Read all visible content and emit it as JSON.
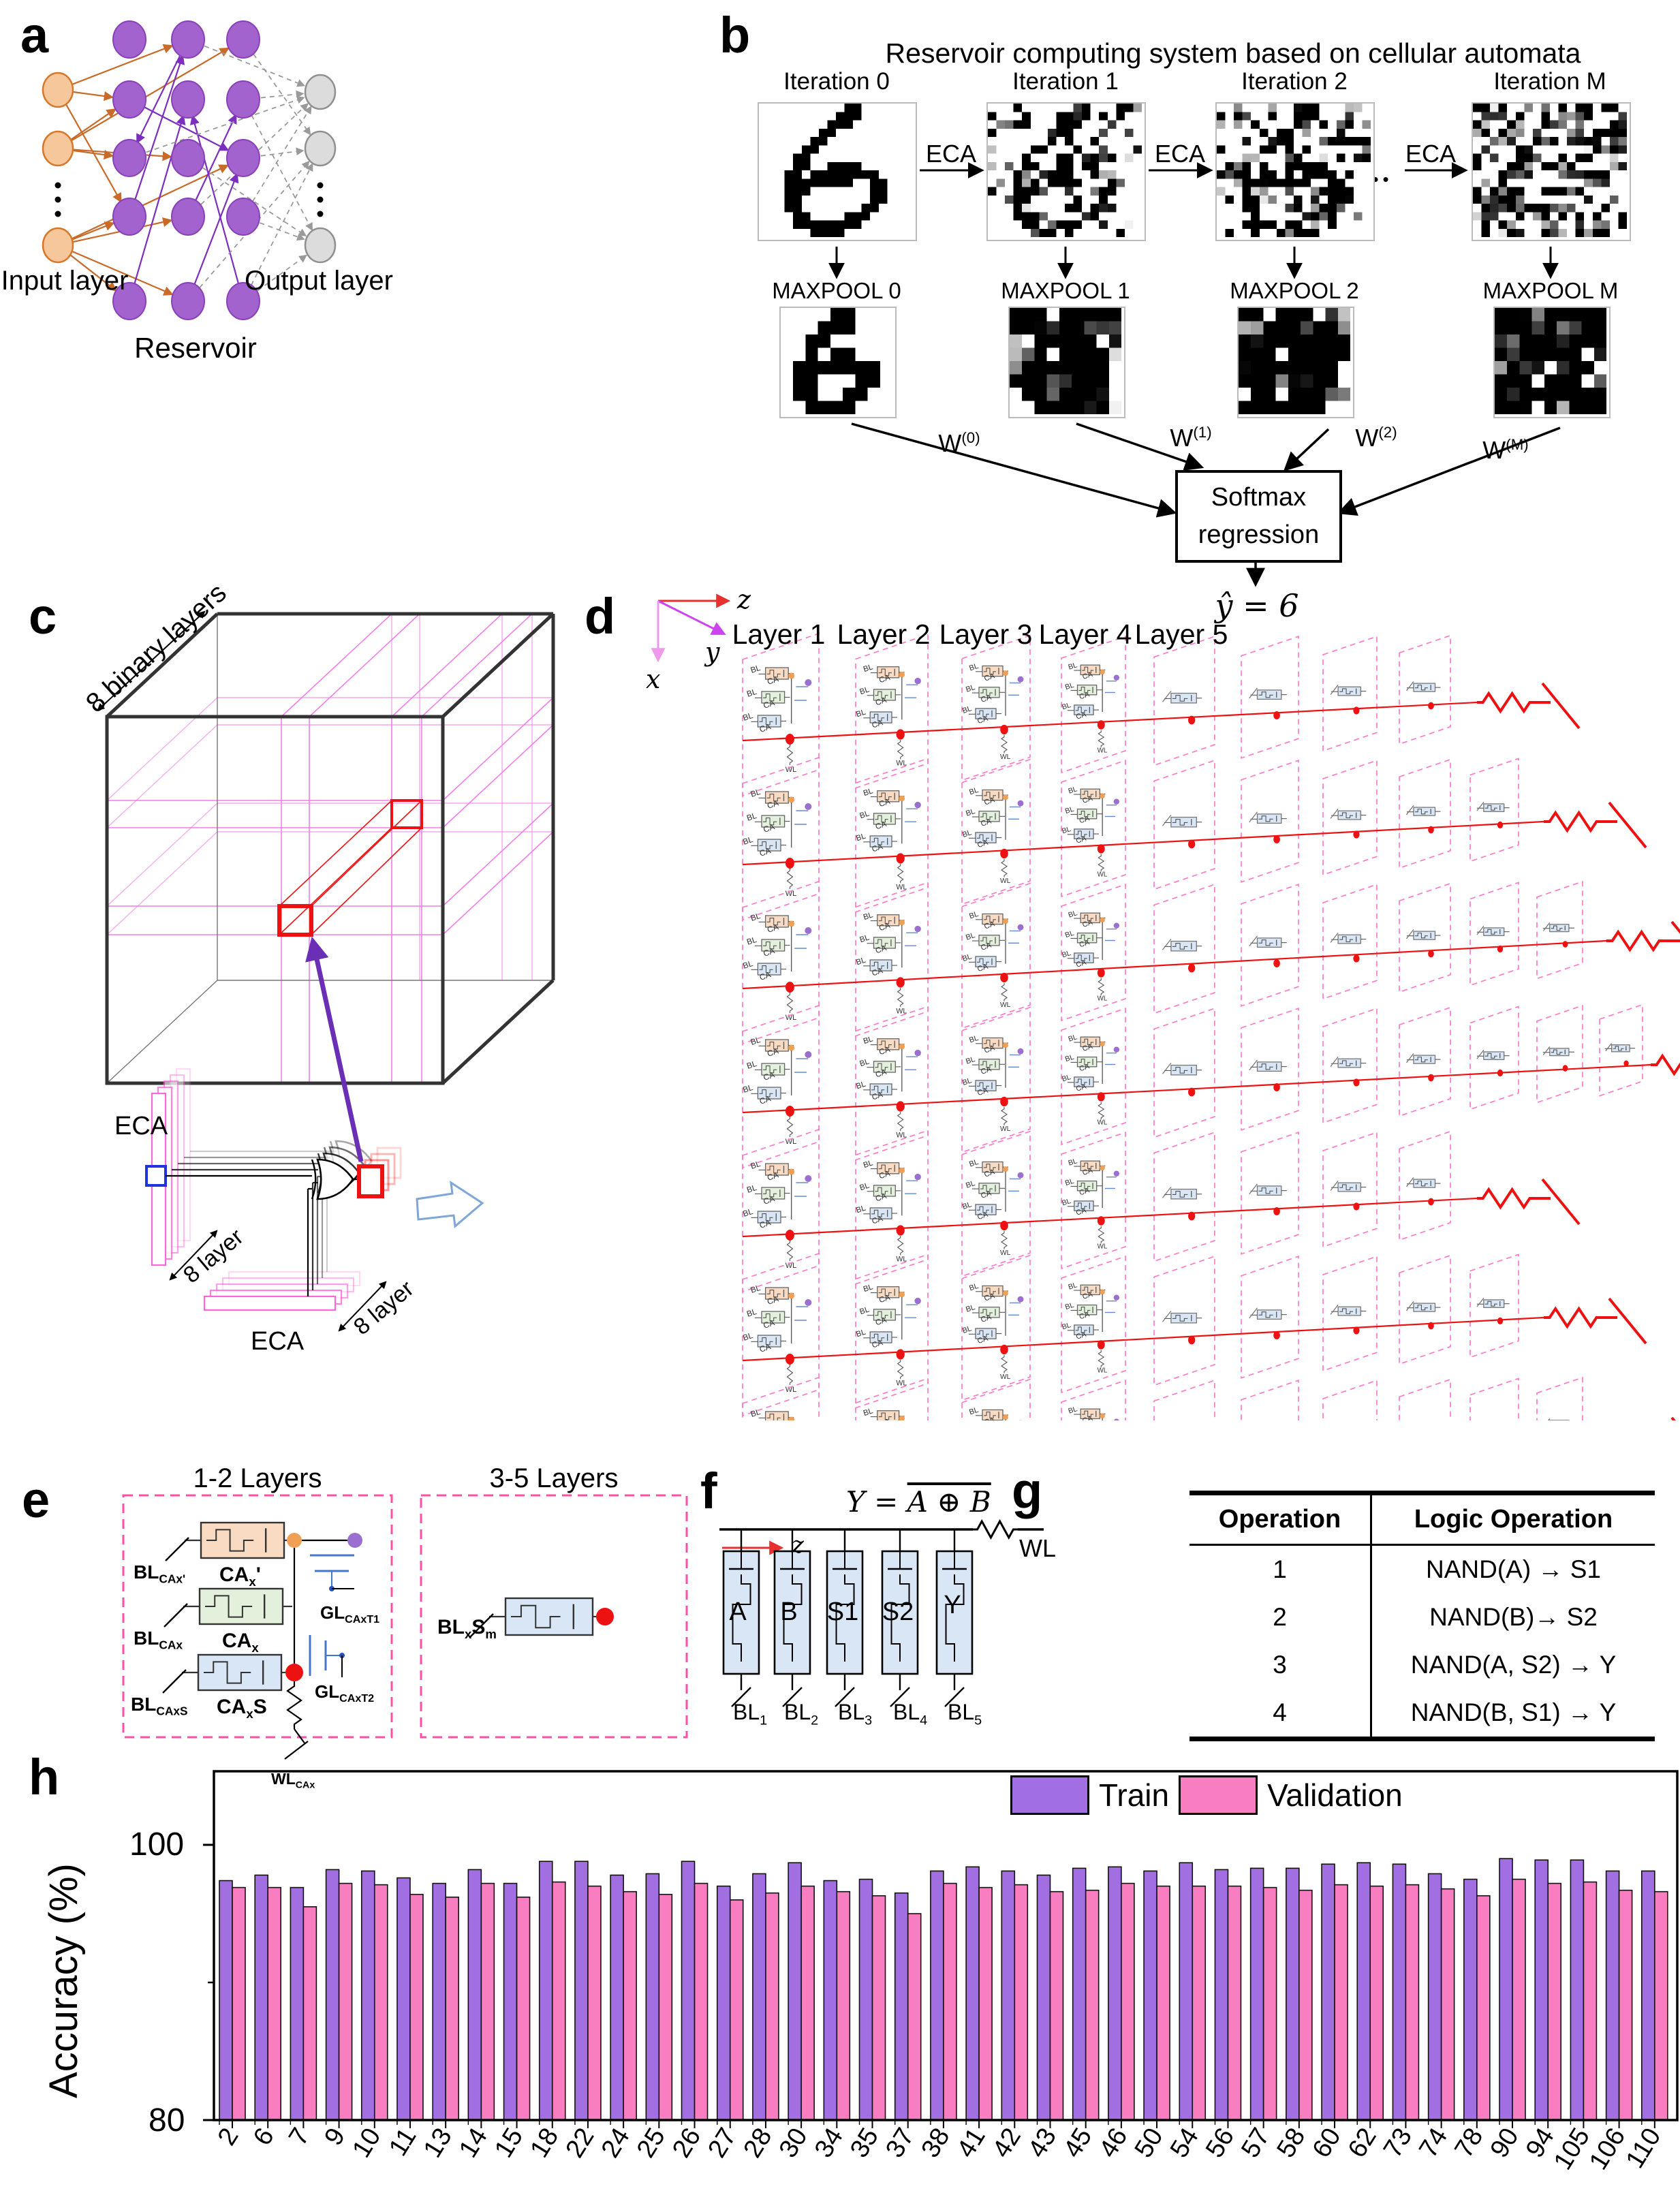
{
  "panel_a": {
    "letter": "a",
    "input_label": "Input layer",
    "reservoir_label": "Reservoir",
    "output_label": "Output layer"
  },
  "panel_b": {
    "letter": "b",
    "title": "Reservoir computing system based on cellular automata",
    "iterations": [
      "Iteration 0",
      "Iteration 1",
      "Iteration 2",
      "Iteration M"
    ],
    "eca_labels": [
      "ECA",
      "ECA",
      "ECA"
    ],
    "dots": "•••",
    "maxpool": [
      "MAXPOOL 0",
      "MAXPOOL 1",
      "MAXPOOL 2",
      "MAXPOOL M"
    ],
    "weights": [
      {
        "base": "W",
        "sup": "(0)"
      },
      {
        "base": "W",
        "sup": "(1)"
      },
      {
        "base": "W",
        "sup": "(2)"
      },
      {
        "base": "W",
        "sup": "(M)"
      }
    ],
    "softmax_lines": [
      "Softmax",
      "regression"
    ],
    "prediction": "ŷ = 6",
    "digit_bitmap": [
      "..........##......",
      ".........###......",
      "........###.......",
      ".......##.........",
      "......##..........",
      ".....##...........",
      "....##............",
      "....##..####......",
      "...##.########....",
      "...########..##...",
      "...###.......##...",
      "...##........##...",
      "...##.......##....",
      "....##....###.....",
      "....########......",
      "......####........"
    ],
    "noise_levels": [
      0,
      0.38,
      0.58,
      0.93
    ]
  },
  "panel_c": {
    "letter": "c",
    "binary_layers_label": "8 binary layers",
    "eca_top": "ECA",
    "eca_bottom": "ECA",
    "layer8_labels": [
      "8 layer",
      "8 layer"
    ]
  },
  "panel_d": {
    "letter": "d",
    "axes": {
      "x": "x",
      "y": "y",
      "z": "z"
    },
    "layers": [
      "Layer 1",
      "Layer 2",
      "Layer 3",
      "Layer 4",
      "Layer 5"
    ],
    "cell_glyph_labels": {
      "bl": "BL",
      "ca": "CA",
      "gl": "GL",
      "wl": "WL"
    }
  },
  "panel_e": {
    "letter": "e",
    "group1_title": "1-2 Layers",
    "group2_title": "3-5 Layers",
    "bl_labels": [
      {
        "base": "BL",
        "sub": "CAx'"
      },
      {
        "base": "BL",
        "sub": "CAx"
      },
      {
        "base": "BL",
        "sub": "CAxS"
      }
    ],
    "ca_labels": [
      {
        "base": "CA",
        "sub": "x",
        "post": "'"
      },
      {
        "base": "CA",
        "sub": "x",
        "post": ""
      },
      {
        "base": "CA",
        "sub": "x",
        "post": "S"
      }
    ],
    "gl_labels": [
      {
        "base": "GL",
        "sub": "CAxT1"
      },
      {
        "base": "GL",
        "sub": "CAxT2"
      }
    ],
    "wl_label": {
      "base": "WL",
      "sub": "CAx"
    },
    "blxsm": {
      "base": "BL",
      "sub": "x",
      "mid": "S",
      "sub2": "m"
    }
  },
  "panel_f": {
    "letter": "f",
    "z_label": "z",
    "equation": {
      "lhs": "Y = ",
      "overline": "A ⊕ B"
    },
    "wl": "WL",
    "cells": [
      "A",
      "B",
      "S1",
      "S2",
      "Y"
    ],
    "bitlines": [
      {
        "base": "BL",
        "sub": "1"
      },
      {
        "base": "BL",
        "sub": "2"
      },
      {
        "base": "BL",
        "sub": "3"
      },
      {
        "base": "BL",
        "sub": "4"
      },
      {
        "base": "BL",
        "sub": "5"
      }
    ]
  },
  "panel_g": {
    "letter": "g",
    "table": {
      "headers": [
        "Operation",
        "Logic Operation"
      ],
      "rows": [
        [
          "1",
          "NAND(A) → S1"
        ],
        [
          "2",
          "NAND(B)→ S2"
        ],
        [
          "3",
          "NAND(A, S2) → Y"
        ],
        [
          "4",
          "NAND(B, S1) → Y"
        ]
      ]
    }
  },
  "panel_h": {
    "letter": "h"
  },
  "chart_data": {
    "type": "bar",
    "title": "",
    "xlabel": "",
    "ylabel": "Accuracy (%)",
    "ylim": [
      80,
      104.5
    ],
    "ytick_labels": [
      "100",
      "80"
    ],
    "yticks": [
      100,
      80
    ],
    "minor_ticks": [
      90
    ],
    "grid": false,
    "legend_position": "top-center-inside",
    "categories": [
      "2",
      "6",
      "7",
      "9",
      "10",
      "11",
      "13",
      "14",
      "15",
      "18",
      "22",
      "24",
      "25",
      "26",
      "27",
      "28",
      "30",
      "34",
      "35",
      "37",
      "38",
      "41",
      "42",
      "43",
      "45",
      "46",
      "50",
      "54",
      "56",
      "57",
      "58",
      "60",
      "62",
      "73",
      "74",
      "78",
      "90",
      "94",
      "105",
      "106",
      "110"
    ],
    "series": [
      {
        "name": "Train",
        "color": "#a26fe3",
        "values": [
          97.4,
          97.8,
          96.9,
          98.2,
          98.1,
          97.6,
          97.2,
          98.2,
          97.2,
          98.8,
          98.8,
          97.8,
          97.9,
          98.8,
          97.0,
          97.9,
          98.7,
          97.4,
          97.5,
          96.5,
          98.1,
          98.4,
          98.1,
          97.8,
          98.3,
          98.4,
          98.1,
          98.7,
          98.2,
          98.3,
          98.3,
          98.6,
          98.7,
          98.6,
          97.9,
          97.5,
          99.0,
          98.9,
          98.9,
          98.1,
          98.1
        ]
      },
      {
        "name": "Validation",
        "color": "#f97ec1",
        "values": [
          96.9,
          96.9,
          95.5,
          97.2,
          97.1,
          96.4,
          96.2,
          97.2,
          96.2,
          97.3,
          97.0,
          96.6,
          96.4,
          97.2,
          96.0,
          96.5,
          97.0,
          96.6,
          96.3,
          95.0,
          97.2,
          96.9,
          97.1,
          96.6,
          96.7,
          97.2,
          97.0,
          97.0,
          97.0,
          96.9,
          96.7,
          97.1,
          97.0,
          97.1,
          96.8,
          96.3,
          97.5,
          97.2,
          97.3,
          96.7,
          96.6
        ]
      }
    ]
  },
  "colors": {
    "input_node": "#f7c79c",
    "input_stroke": "#d8772a",
    "reservoir_node": "#a263ce",
    "reservoir_stroke": "#8a40b8",
    "output_node": "#dcdcdc",
    "output_stroke": "#909090",
    "orange_edge": "#c96a28",
    "purple_edge": "#7c2fbe",
    "gray_edge": "#9a9a9a",
    "pink_dash": "#ff4fa7",
    "pink_dash_light": "#ff7bc8",
    "cube_pink": "#f07fe8",
    "red": "#ee1111",
    "fe_orange": "#f8dbc2",
    "fe_green": "#e3f0dc",
    "fe_blue": "#d9e6f5",
    "axis_z": "#e83030",
    "axis_y": "#cc44ee",
    "axis_x": "#ee99ee",
    "purple_arrow": "#6a2fb5",
    "blue_sq": "#2233dd"
  }
}
